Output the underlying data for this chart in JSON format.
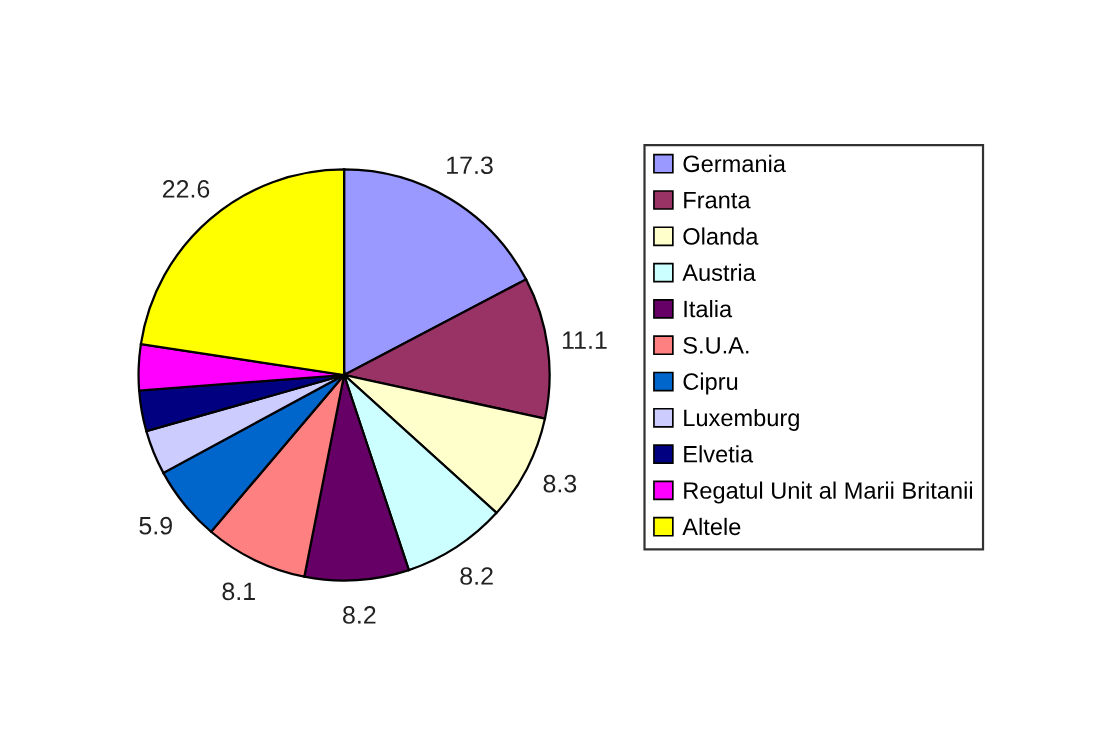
{
  "chart_data": {
    "type": "pie",
    "categories": [
      "Germania",
      "Franta",
      "Olanda",
      "Austria",
      "Italia",
      "S.U.A.",
      "Cipru",
      "Luxemburg",
      "Elvetia",
      "Regatul Unit al Marii Britanii",
      "Altele"
    ],
    "values": [
      17.3,
      11.1,
      8.3,
      8.2,
      8.2,
      8.1,
      5.9,
      3.5,
      3.2,
      3.6,
      22.6
    ],
    "value_labels": [
      "17.3",
      "11.1",
      "8.3",
      "8.2",
      "8.2",
      "8.1",
      "5.9",
      null,
      null,
      null,
      "22.6"
    ],
    "colors": [
      "#9999ff",
      "#993366",
      "#ffffcc",
      "#ccffff",
      "#660066",
      "#ff8080",
      "#0066cc",
      "#ccccff",
      "#000080",
      "#ff00ff",
      "#ffff00"
    ],
    "legend": "right"
  }
}
